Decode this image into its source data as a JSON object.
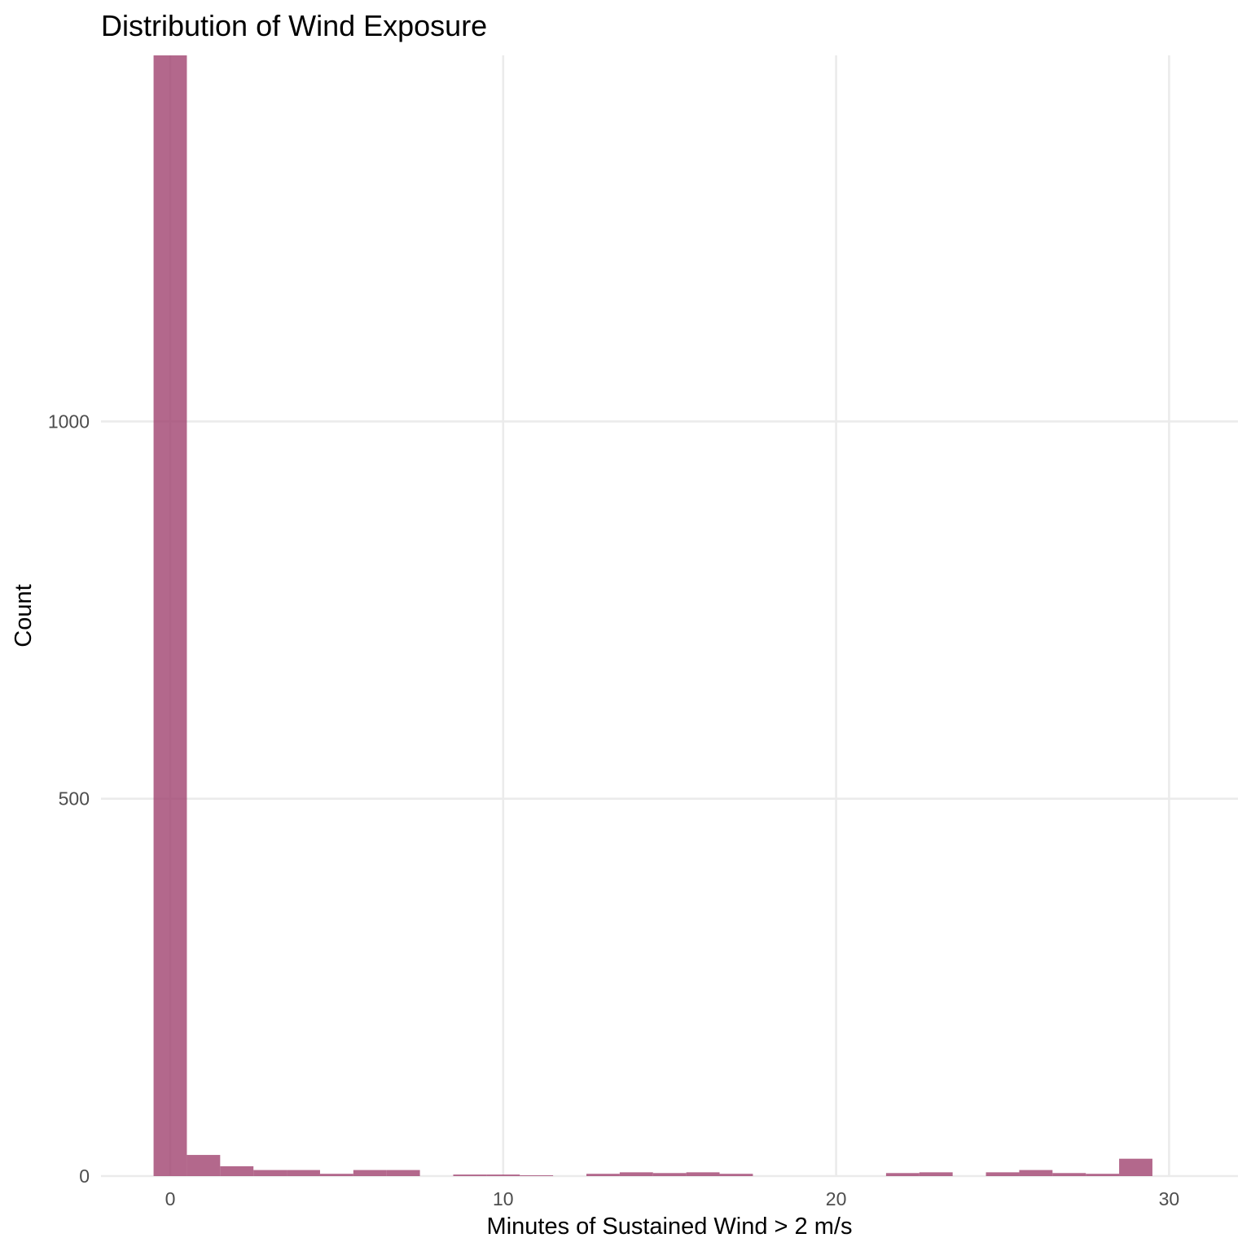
{
  "chart_data": {
    "type": "bar",
    "subtype": "histogram",
    "title": "Distribution of Wind Exposure",
    "xlabel": "Minutes of Sustained Wind > 2 m/s",
    "ylabel": "Count",
    "xlim": [
      -1.5,
      32.5
    ],
    "ylim": [
      0,
      1490
    ],
    "x_ticks": [
      0,
      10,
      20,
      30
    ],
    "x_tick_labels": [
      "0",
      "10",
      "20",
      "30"
    ],
    "y_ticks": [
      0,
      500,
      1000
    ],
    "y_tick_labels": [
      "0",
      "500",
      "1000"
    ],
    "grid": true,
    "legend": "none",
    "bar_color": "#a0426f",
    "bar_opacity": 0.8,
    "bins": [
      {
        "x_start": -0.5,
        "x_end": 0.5,
        "count": 1490
      },
      {
        "x_start": 0.5,
        "x_end": 1.5,
        "count": 28
      },
      {
        "x_start": 1.5,
        "x_end": 2.5,
        "count": 13
      },
      {
        "x_start": 2.5,
        "x_end": 3.5,
        "count": 8
      },
      {
        "x_start": 3.5,
        "x_end": 4.5,
        "count": 8
      },
      {
        "x_start": 4.5,
        "x_end": 5.5,
        "count": 3
      },
      {
        "x_start": 5.5,
        "x_end": 6.5,
        "count": 8
      },
      {
        "x_start": 6.5,
        "x_end": 7.5,
        "count": 8
      },
      {
        "x_start": 7.5,
        "x_end": 8.5,
        "count": 0
      },
      {
        "x_start": 8.5,
        "x_end": 9.5,
        "count": 2
      },
      {
        "x_start": 9.5,
        "x_end": 10.5,
        "count": 2
      },
      {
        "x_start": 10.5,
        "x_end": 11.5,
        "count": 1
      },
      {
        "x_start": 11.5,
        "x_end": 12.5,
        "count": 0
      },
      {
        "x_start": 12.5,
        "x_end": 13.5,
        "count": 3
      },
      {
        "x_start": 13.5,
        "x_end": 14.5,
        "count": 5
      },
      {
        "x_start": 14.5,
        "x_end": 15.5,
        "count": 4
      },
      {
        "x_start": 15.5,
        "x_end": 16.5,
        "count": 5
      },
      {
        "x_start": 16.5,
        "x_end": 17.5,
        "count": 3
      },
      {
        "x_start": 17.5,
        "x_end": 18.5,
        "count": 0
      },
      {
        "x_start": 18.5,
        "x_end": 19.5,
        "count": 0
      },
      {
        "x_start": 19.5,
        "x_end": 20.5,
        "count": 0
      },
      {
        "x_start": 20.5,
        "x_end": 21.5,
        "count": 0
      },
      {
        "x_start": 21.5,
        "x_end": 22.5,
        "count": 4
      },
      {
        "x_start": 22.5,
        "x_end": 23.5,
        "count": 5
      },
      {
        "x_start": 23.5,
        "x_end": 24.5,
        "count": 0
      },
      {
        "x_start": 24.5,
        "x_end": 25.5,
        "count": 5
      },
      {
        "x_start": 25.5,
        "x_end": 26.5,
        "count": 8
      },
      {
        "x_start": 26.5,
        "x_end": 27.5,
        "count": 4
      },
      {
        "x_start": 27.5,
        "x_end": 28.5,
        "count": 3
      },
      {
        "x_start": 28.5,
        "x_end": 29.5,
        "count": 23
      }
    ]
  }
}
